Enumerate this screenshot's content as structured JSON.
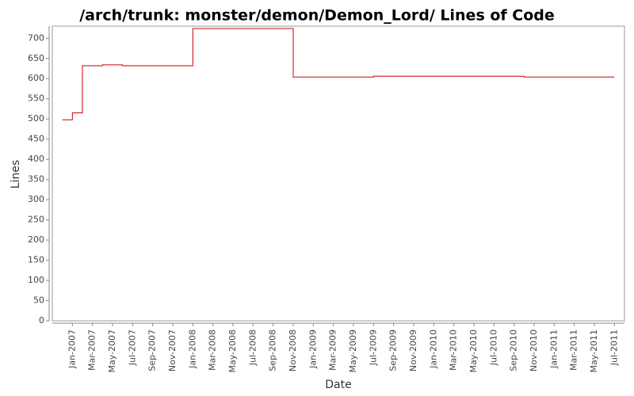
{
  "chart_data": {
    "type": "step-line",
    "title": "/arch/trunk: monster/demon/Demon_Lord/ Lines of Code",
    "x_label": "Date",
    "y_label": "Lines",
    "x": [
      "2006-12",
      "2007-01",
      "2007-02",
      "2007-04",
      "2007-06",
      "2008-01",
      "2008-11",
      "2009-07",
      "2010-10",
      "2011-07"
    ],
    "series": [
      {
        "name": "Lines",
        "color": "#cc0000",
        "values": [
          498,
          515,
          632,
          634,
          632,
          724,
          604,
          606,
          604,
          604
        ]
      }
    ],
    "xlim": [
      "2006-11",
      "2011-08"
    ],
    "xticks": [
      {
        "value": "2007-01",
        "label": "Jan-2007"
      },
      {
        "value": "2007-03",
        "label": "Mar-2007"
      },
      {
        "value": "2007-05",
        "label": "May-2007"
      },
      {
        "value": "2007-07",
        "label": "Jul-2007"
      },
      {
        "value": "2007-09",
        "label": "Sep-2007"
      },
      {
        "value": "2007-11",
        "label": "Nov-2007"
      },
      {
        "value": "2008-01",
        "label": "Jan-2008"
      },
      {
        "value": "2008-03",
        "label": "Mar-2008"
      },
      {
        "value": "2008-05",
        "label": "May-2008"
      },
      {
        "value": "2008-07",
        "label": "Jul-2008"
      },
      {
        "value": "2008-09",
        "label": "Sep-2008"
      },
      {
        "value": "2008-11",
        "label": "Nov-2008"
      },
      {
        "value": "2009-01",
        "label": "Jan-2009"
      },
      {
        "value": "2009-03",
        "label": "Mar-2009"
      },
      {
        "value": "2009-05",
        "label": "May-2009"
      },
      {
        "value": "2009-07",
        "label": "Jul-2009"
      },
      {
        "value": "2009-09",
        "label": "Sep-2009"
      },
      {
        "value": "2009-11",
        "label": "Nov-2009"
      },
      {
        "value": "2010-01",
        "label": "Jan-2010"
      },
      {
        "value": "2010-03",
        "label": "Mar-2010"
      },
      {
        "value": "2010-05",
        "label": "May-2010"
      },
      {
        "value": "2010-07",
        "label": "Jul-2010"
      },
      {
        "value": "2010-09",
        "label": "Sep-2010"
      },
      {
        "value": "2010-11",
        "label": "Nov-2010"
      },
      {
        "value": "2011-01",
        "label": "Jan-2011"
      },
      {
        "value": "2011-03",
        "label": "Mar-2011"
      },
      {
        "value": "2011-05",
        "label": "May-2011"
      },
      {
        "value": "2011-07",
        "label": "Jul-2011"
      }
    ],
    "ylim": [
      0,
      730
    ],
    "yticks": [
      0,
      50,
      100,
      150,
      200,
      250,
      300,
      350,
      400,
      450,
      500,
      550,
      600,
      650,
      700
    ]
  }
}
